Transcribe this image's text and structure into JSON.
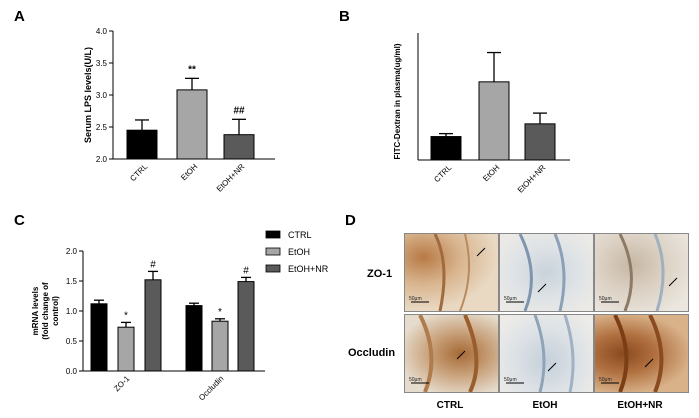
{
  "panels": {
    "a": "A",
    "b": "B",
    "c": "C",
    "d": "D"
  },
  "chart_data": [
    {
      "type": "bar",
      "ylabel": "Serum LPS levels(U/L)",
      "ylim": [
        2.0,
        4.0
      ],
      "yticks": [
        "2.0",
        "2.5",
        "3.0",
        "3.5",
        "4.0"
      ],
      "categories": [
        "CTRL",
        "EtOH",
        "EtOH+NR"
      ],
      "values": [
        2.45,
        3.08,
        2.38
      ],
      "errors": [
        0.16,
        0.18,
        0.24
      ],
      "annotations": [
        "",
        "**",
        "##"
      ],
      "colors": [
        "#000000",
        "#a6a6a6",
        "#5a5a5a"
      ]
    },
    {
      "type": "bar",
      "ylabel": "FITC-Dextran in plasma(ug/ml)",
      "ylim": [
        0,
        1.3
      ],
      "categories": [
        "CTRL",
        "EtOH",
        "EtOH+NR"
      ],
      "values": [
        0.24,
        0.8,
        0.37
      ],
      "errors": [
        0.03,
        0.3,
        0.11
      ],
      "colors": [
        "#000000",
        "#a6a6a6",
        "#5a5a5a"
      ]
    },
    {
      "type": "bar",
      "ylabel_lines": [
        "mRNA levels",
        "(fold change of",
        "control)"
      ],
      "ylim": [
        0.0,
        2.0
      ],
      "yticks": [
        "0.0",
        "0.5",
        "1.0",
        "1.5",
        "2.0"
      ],
      "categories": [
        "ZO-1",
        "Occludin"
      ],
      "series": [
        {
          "name": "CTRL",
          "values": [
            1.12,
            1.09
          ],
          "errors": [
            0.06,
            0.04
          ],
          "color": "#000000",
          "annotations": [
            "",
            ""
          ]
        },
        {
          "name": "EtOH",
          "values": [
            0.73,
            0.83
          ],
          "errors": [
            0.08,
            0.04
          ],
          "color": "#a6a6a6",
          "annotations": [
            "*",
            "*"
          ]
        },
        {
          "name": "EtOH+NR",
          "values": [
            1.52,
            1.49
          ],
          "errors": [
            0.14,
            0.07
          ],
          "color": "#5a5a5a",
          "annotations": [
            "#",
            "#"
          ]
        }
      ]
    }
  ],
  "micrographs": {
    "rows": [
      "ZO-1",
      "Occludin"
    ],
    "columns": [
      "CTRL",
      "EtOH",
      "EtOH+NR"
    ],
    "scale_bar": "50μm"
  }
}
